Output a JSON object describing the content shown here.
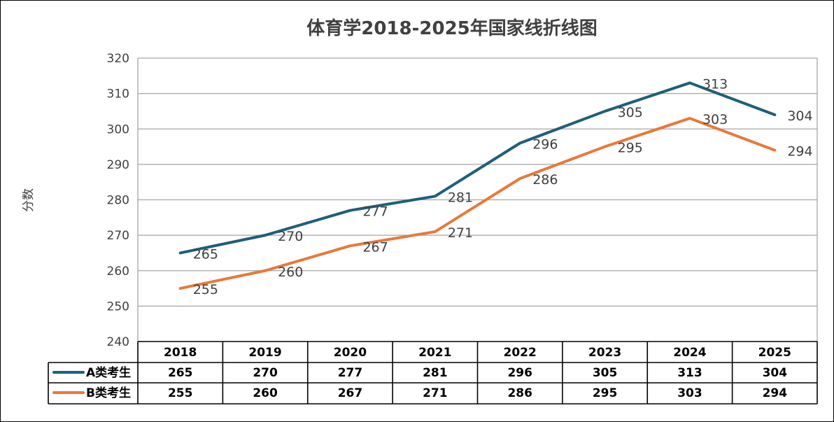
{
  "chart_data": {
    "type": "line",
    "title": "体育学2018-2025年国家线折线图",
    "ylabel": "分数",
    "xlabel": "",
    "categories": [
      "2018",
      "2019",
      "2020",
      "2021",
      "2022",
      "2023",
      "2024",
      "2025"
    ],
    "ylim": [
      240,
      320
    ],
    "yticks": [
      240,
      250,
      260,
      270,
      280,
      290,
      300,
      310,
      320
    ],
    "grid": true,
    "legend": "data-table",
    "series": [
      {
        "name": "A类考生",
        "color": "#1f5f7a",
        "values": [
          265,
          270,
          277,
          281,
          296,
          305,
          313,
          304
        ]
      },
      {
        "name": "B类考生",
        "color": "#e8793b",
        "values": [
          255,
          260,
          267,
          271,
          286,
          295,
          303,
          294
        ]
      }
    ]
  }
}
